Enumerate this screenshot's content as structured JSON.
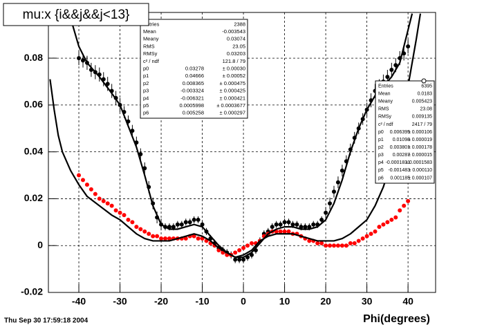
{
  "chart_data": {
    "type": "scatter",
    "title": "mu:x {i&&j&&j<13}",
    "x_label": "Phi(degrees)",
    "footer": "Thu Sep 30 17:59:18 2004",
    "xlim": [
      -47.4,
      46.7
    ],
    "ylim": [
      -0.02,
      0.0995
    ],
    "xticks": [
      -40,
      -30,
      -20,
      -10,
      0,
      10,
      20,
      30,
      40
    ],
    "yticks": [
      -0.02,
      0,
      0.02,
      0.04,
      0.06,
      0.08
    ],
    "grid": true,
    "series": [
      {
        "kind": "points",
        "color": "#000000",
        "x": [
          -40,
          -39,
          -38,
          -37,
          -36,
          -35,
          -34,
          -33,
          -32,
          -31,
          -30,
          -29,
          -28,
          -27,
          -26,
          -25,
          -24,
          -23,
          -22,
          -21,
          -20,
          -19,
          -18,
          -17,
          -16,
          -15,
          -14,
          -13,
          -12,
          -11,
          -10,
          -9,
          -8,
          -7,
          -6,
          -5,
          -4,
          -3,
          -2,
          -1,
          0,
          1,
          2,
          3,
          4,
          5,
          6,
          7,
          8,
          9,
          10,
          11,
          12,
          13,
          14,
          15,
          16,
          17,
          18,
          19,
          20,
          21,
          22,
          23,
          24,
          25,
          26,
          27,
          28,
          29,
          30,
          31,
          32,
          33,
          34,
          35,
          36,
          37,
          38,
          39,
          40
        ],
        "values": [
          0.08,
          0.079,
          0.078,
          0.075,
          0.074,
          0.073,
          0.071,
          0.069,
          0.066,
          0.063,
          0.06,
          0.057,
          0.053,
          0.049,
          0.044,
          0.039,
          0.033,
          0.025,
          0.018,
          0.012,
          0.009,
          0.008,
          0.008,
          0.008,
          0.009,
          0.009,
          0.01,
          0.01,
          0.011,
          0.011,
          0.009,
          0.006,
          0.003,
          0.001,
          -0.001,
          -0.002,
          -0.003,
          -0.004,
          -0.006,
          -0.006,
          -0.006,
          -0.005,
          -0.004,
          -0.002,
          0.002,
          0.005,
          0.006,
          0.008,
          0.009,
          0.009,
          0.01,
          0.01,
          0.009,
          0.009,
          0.008,
          0.008,
          0.008,
          0.009,
          0.009,
          0.011,
          0.014,
          0.018,
          0.023,
          0.027,
          0.032,
          0.036,
          0.041,
          0.046,
          0.05,
          0.054,
          0.058,
          0.062,
          0.066,
          0.068,
          0.07,
          0.072,
          0.075,
          0.077,
          0.08,
          0.082,
          0.085
        ],
        "errors": [
          0.003,
          0.003,
          0.003,
          0.003,
          0.003,
          0.003,
          0.003,
          0.003,
          0.003,
          0.003,
          0.003,
          0.0025,
          0.0025,
          0.0025,
          0.0025,
          0.0025,
          0.0025,
          0.0025,
          0.0025,
          0.0025,
          0.0025,
          0.0015,
          0.0015,
          0.0015,
          0.0015,
          0.0015,
          0.0015,
          0.0015,
          0.0015,
          0.0015,
          0.0015,
          0.0015,
          0.0015,
          0.0015,
          0.0015,
          0.0015,
          0.0015,
          0.0015,
          0.0015,
          0.0015,
          0.0015,
          0.0015,
          0.0015,
          0.0015,
          0.0015,
          0.0015,
          0.0015,
          0.0015,
          0.0015,
          0.0015,
          0.0015,
          0.0015,
          0.0015,
          0.0015,
          0.0015,
          0.0015,
          0.0015,
          0.0015,
          0.0015,
          0.0015,
          0.0025,
          0.0025,
          0.0025,
          0.0025,
          0.0025,
          0.0025,
          0.0025,
          0.0025,
          0.0025,
          0.0025,
          0.003,
          0.003,
          0.003,
          0.003,
          0.003,
          0.003,
          0.003,
          0.003,
          0.003,
          0.003,
          0.003
        ]
      },
      {
        "kind": "points",
        "color": "#ff0000",
        "x": [
          -40,
          -39,
          -38,
          -37,
          -36,
          -35,
          -34,
          -33,
          -32,
          -31,
          -30,
          -29,
          -28,
          -27,
          -26,
          -25,
          -24,
          -23,
          -22,
          -21,
          -20,
          -19,
          -18,
          -17,
          -16,
          -15,
          -14,
          -13,
          -12,
          -11,
          -10,
          -9,
          -8,
          -7,
          -6,
          -5,
          -4,
          -3,
          -2,
          -1,
          0,
          1,
          2,
          3,
          4,
          5,
          6,
          7,
          8,
          9,
          10,
          11,
          12,
          13,
          14,
          15,
          16,
          17,
          18,
          19,
          20,
          21,
          22,
          23,
          24,
          25,
          26,
          27,
          28,
          29,
          30,
          31,
          32,
          33,
          34,
          35,
          36,
          37,
          38,
          39,
          40
        ],
        "values": [
          0.03,
          0.028,
          0.026,
          0.024,
          0.022,
          0.02,
          0.019,
          0.018,
          0.017,
          0.015,
          0.014,
          0.013,
          0.011,
          0.01,
          0.008,
          0.007,
          0.006,
          0.005,
          0.004,
          0.004,
          0.003,
          0.003,
          0.003,
          0.003,
          0.003,
          0.003,
          0.003,
          0.004,
          0.004,
          0.003,
          0.003,
          0.002,
          0.001,
          0.0,
          -0.002,
          -0.003,
          -0.004,
          -0.004,
          -0.003,
          -0.002,
          -0.001,
          0.0,
          0.001,
          0.001,
          0.002,
          0.004,
          0.005,
          0.006,
          0.006,
          0.006,
          0.006,
          0.006,
          0.005,
          0.005,
          0.004,
          0.003,
          0.002,
          0.002,
          0.001,
          0.001,
          0.0,
          0.0,
          0.0,
          0.0,
          0.0,
          0.0,
          0.001,
          0.001,
          0.002,
          0.003,
          0.004,
          0.005,
          0.006,
          0.008,
          0.009,
          0.01,
          0.011,
          0.012,
          0.015,
          0.017,
          0.019
        ]
      },
      {
        "kind": "line",
        "color": "#000000",
        "x": [
          -42,
          -40,
          -38,
          -35,
          -32,
          -30,
          -28,
          -26,
          -24,
          -22,
          -20,
          -18,
          -16,
          -14,
          -12,
          -10,
          -8,
          -6,
          -4,
          -2,
          0,
          2,
          4,
          6,
          8,
          10,
          12,
          14,
          16,
          18,
          20,
          22,
          24,
          26,
          28,
          30,
          32,
          34,
          36,
          38,
          40,
          41
        ],
        "values": [
          0.097,
          0.085,
          0.078,
          0.072,
          0.065,
          0.06,
          0.051,
          0.042,
          0.03,
          0.017,
          0.009,
          0.007,
          0.007,
          0.008,
          0.009,
          0.008,
          0.004,
          0.0,
          -0.003,
          -0.005,
          -0.005,
          -0.003,
          0.001,
          0.005,
          0.007,
          0.008,
          0.008,
          0.007,
          0.007,
          0.008,
          0.011,
          0.018,
          0.028,
          0.04,
          0.05,
          0.058,
          0.064,
          0.068,
          0.072,
          0.078,
          0.092,
          0.099
        ]
      },
      {
        "kind": "line",
        "color": "#000000",
        "x": [
          -47,
          -46,
          -45,
          -44,
          -42,
          -40,
          -38,
          -35,
          -32,
          -30,
          -28,
          -26,
          -24,
          -22,
          -20,
          -18,
          -16,
          -14,
          -12,
          -10,
          -8,
          -6,
          -4,
          -2,
          0,
          2,
          4,
          6,
          8,
          10,
          12,
          14,
          16,
          18,
          20,
          22,
          24,
          26,
          28,
          30,
          32,
          34,
          36,
          38,
          40,
          42,
          43
        ],
        "values": [
          0.071,
          0.058,
          0.047,
          0.04,
          0.032,
          0.026,
          0.021,
          0.017,
          0.013,
          0.011,
          0.008,
          0.005,
          0.003,
          0.002,
          0.002,
          0.002,
          0.003,
          0.004,
          0.005,
          0.004,
          0.002,
          -0.001,
          -0.003,
          -0.005,
          -0.004,
          -0.002,
          0.002,
          0.004,
          0.005,
          0.005,
          0.005,
          0.004,
          0.003,
          0.002,
          0.002,
          0.002,
          0.003,
          0.005,
          0.008,
          0.011,
          0.017,
          0.025,
          0.036,
          0.05,
          0.068,
          0.088,
          0.099
        ]
      }
    ]
  },
  "stats_boxes": [
    {
      "rows": [
        [
          "Entries",
          "2388"
        ],
        [
          "Mean",
          "-0.003543"
        ],
        [
          "Meany",
          "0.03074"
        ],
        [
          "RMS",
          "23.05"
        ],
        [
          "RMSy",
          "0.03203"
        ],
        [
          "c² / ndf",
          "121.8 / 79"
        ],
        [
          "p0",
          "0.03278",
          "± 0.00030"
        ],
        [
          "p1",
          "0.04666",
          "± 0.00052"
        ],
        [
          "p2",
          "0.008365",
          "± 0.000475"
        ],
        [
          "p3",
          "-0.003324",
          "± 0.000425"
        ],
        [
          "p4",
          "-0.006321",
          "± 0.000421"
        ],
        [
          "p5",
          "0.0005998",
          "± 0.0003677"
        ],
        [
          "p6",
          "0.005258",
          "± 0.000297"
        ]
      ]
    },
    {
      "rows": [
        [
          "Entries",
          "6395"
        ],
        [
          "Mean",
          "0.0183"
        ],
        [
          "Meany",
          "0.005423"
        ],
        [
          "RMS",
          "23.08"
        ],
        [
          "RMSy",
          "0.009135"
        ],
        [
          "c² / ndf",
          "2417 / 79"
        ],
        [
          "p0",
          "0.006395",
          "± 0.000106"
        ],
        [
          "p1",
          "0.01098",
          "± 0.000019"
        ],
        [
          "p2",
          "0.003801",
          "± 0.000178"
        ],
        [
          "p3",
          "0.00287",
          "± 0.000015"
        ],
        [
          "p4",
          "-0.0001831",
          "± 0.0001583"
        ],
        [
          "p5",
          "-0.001483",
          "± 0.000110"
        ],
        [
          "p6",
          "0.001185",
          "± 0.000107"
        ]
      ]
    }
  ]
}
